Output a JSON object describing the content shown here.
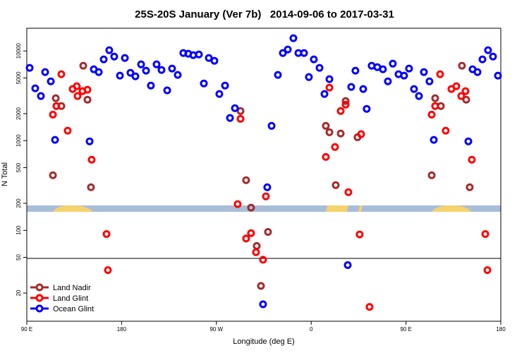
{
  "chart_data": {
    "type": "scatter",
    "title": "25S-20S January (Ver 7b)   2014-09-06 to 2017-03-31",
    "x_label": "Longitude (deg E)",
    "y_label": "N Total",
    "xlim": [
      90,
      540
    ],
    "xticks": [
      {
        "value": 90,
        "label": "90 E"
      },
      180,
      {
        "value": 270,
        "label": "90 W"
      },
      {
        "value": 360,
        "label": "0"
      },
      {
        "value": 450,
        "label": "90 E"
      },
      {
        "value": 540,
        "label": "180"
      }
    ],
    "ylim": [
      9.7,
      17900
    ],
    "y_log": true,
    "yticks": [
      20,
      50,
      100,
      200,
      500,
      1000,
      2000,
      5000,
      10000
    ],
    "legend": "lower left",
    "series": [
      {
        "name": "Land Nadir",
        "color": "#a52a2a",
        "x": [
          114.8,
          117.5,
          122.8,
          143.6,
          147.6,
          150.9,
          292.9,
          298.2,
          302.9,
          308.3,
          312.3,
          319.0,
          373.9,
          377.3,
          383.3,
          388.0,
          392.7,
          404.0,
          474.4,
          477.7,
          483.1,
          503.1,
          507.2,
          510.5
        ],
        "values": [
          411,
          2970,
          2430,
          6830,
          2860,
          302,
          2140,
          362,
          179,
          67,
          24,
          96,
          1460,
          1240,
          319,
          1200,
          2760,
          1090,
          411,
          2970,
          2430,
          6830,
          2860,
          302
        ]
      },
      {
        "name": "Land Glint",
        "color": "#ff0000",
        "x": [
          114.8,
          118.1,
          122.8,
          128.8,
          133.5,
          137.5,
          138.2,
          142.9,
          147.6,
          151.6,
          165.7,
          167.0,
          290.2,
          292.9,
          298.2,
          302.9,
          307.6,
          314.3,
          317.0,
          373.9,
          377.3,
          382.6,
          388.0,
          392.7,
          395.3,
          406.0,
          407.4,
          415.4,
          474.4,
          477.7,
          482.4,
          487.7,
          493.1,
          497.8,
          502.5,
          506.5,
          512.5,
          525.3,
          527.3
        ],
        "values": [
          1950,
          2430,
          5500,
          1290,
          3760,
          4040,
          3140,
          3560,
          3690,
          612,
          91,
          36,
          196,
          1750,
          81,
          93,
          57,
          47,
          239,
          659,
          3900,
          849,
          2140,
          2520,
          266,
          90,
          1180,
          14,
          1950,
          2430,
          5500,
          1290,
          3760,
          4040,
          3140,
          3560,
          612,
          91,
          36
        ]
      },
      {
        "name": "Ocean Glint",
        "color": "#0000ff",
        "x": [
          92.7,
          98.0,
          103.4,
          107.4,
          112.8,
          116.8,
          149.6,
          153.6,
          158.3,
          163.0,
          168.3,
          173.0,
          178.4,
          183.1,
          188.4,
          193.1,
          198.5,
          203.2,
          207.8,
          213.2,
          217.9,
          223.3,
          227.9,
          233.3,
          238.6,
          243.3,
          248.0,
          253.4,
          258.1,
          262.8,
          268.1,
          272.8,
          278.2,
          282.9,
          287.6,
          318.3,
          314.3,
          322.4,
          328.4,
          333.1,
          337.8,
          343.1,
          347.8,
          353.2,
          357.8,
          362.5,
          367.9,
          372.6,
          377.3,
          394.7,
          398.0,
          402.0,
          409.4,
          412.7,
          417.4,
          422.8,
          428.1,
          432.8,
          437.5,
          442.9,
          448.2,
          452.9,
          457.6,
          462.3,
          467.0,
          472.3,
          476.4,
          509.2,
          513.2,
          517.9,
          522.6,
          527.9,
          532.6,
          537.3
        ],
        "values": [
          6470,
          3830,
          3140,
          5810,
          4580,
          1020,
          982,
          6240,
          5810,
          8050,
          10180,
          8650,
          5300,
          8340,
          5700,
          5210,
          7080,
          6020,
          4110,
          7080,
          6130,
          3630,
          6360,
          5400,
          9470,
          9300,
          8970,
          9140,
          4340,
          8340,
          7760,
          3310,
          4110,
          1790,
          2300,
          302,
          15,
          1460,
          5400,
          9470,
          10370,
          13870,
          9470,
          9470,
          5110,
          8050,
          6470,
          3310,
          4840,
          41,
          3970,
          6020,
          3760,
          2260,
          6830,
          6590,
          6240,
          4580,
          7210,
          5500,
          5300,
          6360,
          3760,
          3140,
          5810,
          4580,
          1020,
          982,
          6240,
          5810,
          8050,
          10180,
          8650,
          5300
        ]
      }
    ]
  }
}
